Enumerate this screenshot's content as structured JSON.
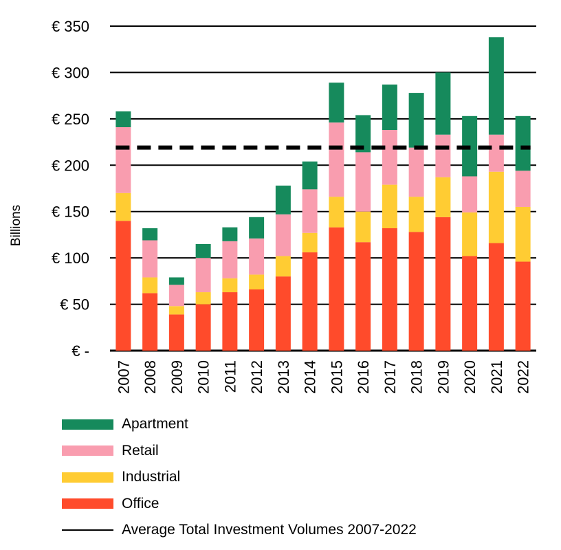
{
  "chart_data": {
    "type": "bar",
    "stacked": true,
    "ylabel": "Billions",
    "xlabel": "",
    "ylim": [
      0,
      350
    ],
    "yticks": [
      {
        "value": 0,
        "label": "€ -"
      },
      {
        "value": 50,
        "label": "€ 50"
      },
      {
        "value": 100,
        "label": "€ 100"
      },
      {
        "value": 150,
        "label": "€ 150"
      },
      {
        "value": 200,
        "label": "€ 200"
      },
      {
        "value": 250,
        "label": "€ 250"
      },
      {
        "value": 300,
        "label": "€ 300"
      },
      {
        "value": 350,
        "label": "€ 350"
      }
    ],
    "grid": true,
    "legend_position": "bottom-left",
    "categories": [
      "2007",
      "2008",
      "2009",
      "2010",
      "2011",
      "2012",
      "2013",
      "2014",
      "2015",
      "2016",
      "2017",
      "2018",
      "2019",
      "2020",
      "2021",
      "2022"
    ],
    "series": [
      {
        "name": "Office",
        "color": "#ff4b2b",
        "values": [
          140,
          62,
          39,
          50,
          63,
          66,
          80,
          106,
          133,
          117,
          132,
          128,
          144,
          102,
          116,
          96
        ]
      },
      {
        "name": "Industrial",
        "color": "#ffcc33",
        "values": [
          30,
          17,
          9,
          13,
          15,
          16,
          22,
          21,
          33,
          33,
          47,
          38,
          43,
          47,
          77,
          59
        ]
      },
      {
        "name": "Retail",
        "color": "#f99daf",
        "values": [
          71,
          40,
          23,
          37,
          40,
          39,
          45,
          47,
          80,
          64,
          59,
          53,
          46,
          39,
          40,
          39
        ]
      },
      {
        "name": "Apartment",
        "color": "#168a5c",
        "values": [
          17,
          13,
          8,
          15,
          15,
          23,
          31,
          30,
          43,
          40,
          49,
          59,
          67,
          65,
          105,
          59
        ]
      }
    ],
    "average_line": {
      "name": "Average Total Investment Volumes 2007-2022",
      "value": 219,
      "style": "dashed",
      "color": "#000000"
    }
  },
  "legend": {
    "items": [
      {
        "label": "Apartment",
        "color": "#168a5c"
      },
      {
        "label": "Retail",
        "color": "#f99daf"
      },
      {
        "label": "Industrial",
        "color": "#ffcc33"
      },
      {
        "label": "Office",
        "color": "#ff4b2b"
      }
    ],
    "line_label": "Average Total Investment Volumes 2007-2022"
  }
}
